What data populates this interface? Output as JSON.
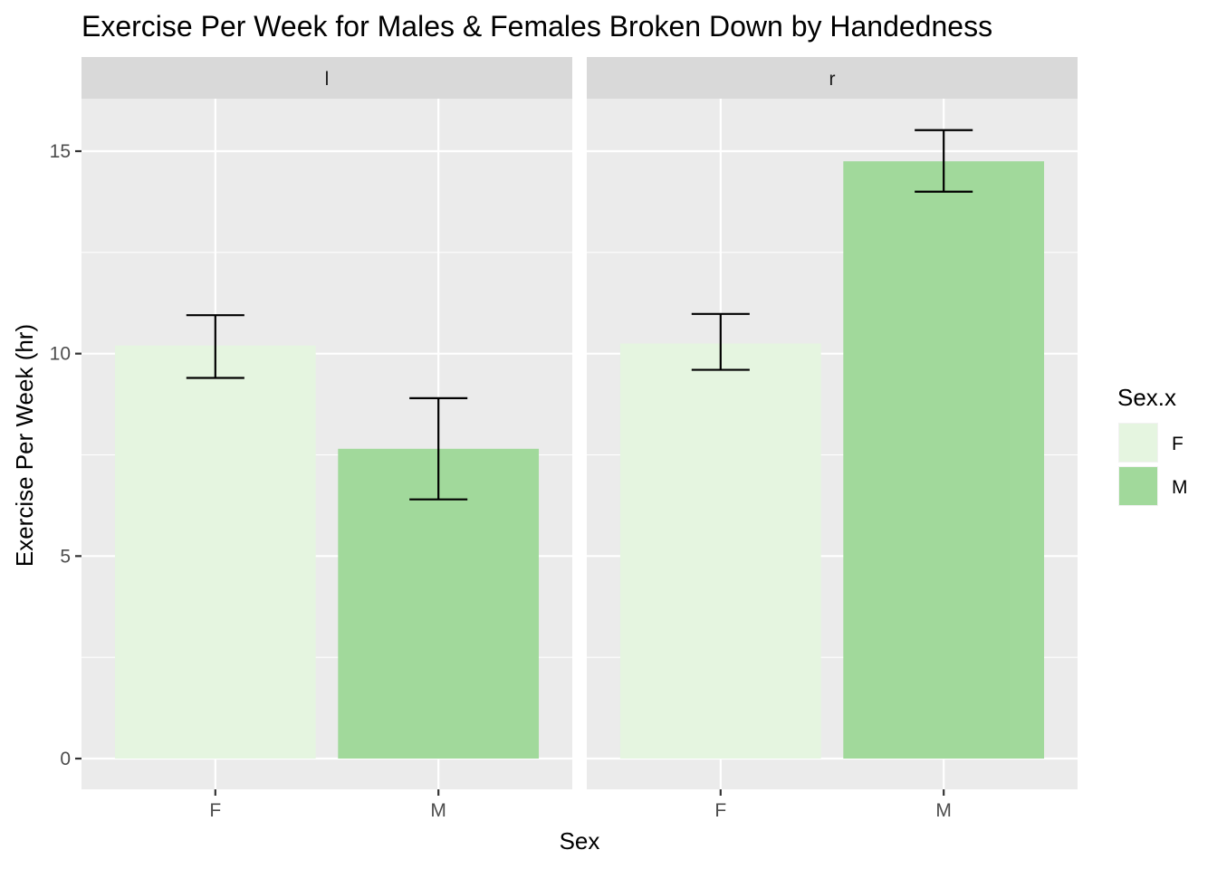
{
  "chart_data": {
    "type": "bar",
    "title": "Exercise Per Week for Males & Females Broken Down by Handedness",
    "xlabel": "Sex",
    "ylabel": "Exercise Per Week (hr)",
    "ylim": [
      -0.75,
      17.1
    ],
    "yticks": [
      0,
      5,
      10,
      15
    ],
    "grid": true,
    "legend": {
      "title": "Sex.x",
      "position": "right",
      "entries": [
        {
          "label": "F",
          "color": "#e5f5e0"
        },
        {
          "label": "M",
          "color": "#a1d99b"
        }
      ]
    },
    "categories": [
      "F",
      "M"
    ],
    "facets": [
      {
        "label": "l",
        "bars": [
          {
            "category": "F",
            "value": 10.2,
            "err_low": 9.4,
            "err_high": 10.95
          },
          {
            "category": "M",
            "value": 7.65,
            "err_low": 6.4,
            "err_high": 8.9
          }
        ]
      },
      {
        "label": "r",
        "bars": [
          {
            "category": "F",
            "value": 10.25,
            "err_low": 9.6,
            "err_high": 10.98
          },
          {
            "category": "M",
            "value": 14.75,
            "err_low": 14.0,
            "err_high": 15.52
          }
        ]
      }
    ]
  },
  "colors": {
    "panel_bg": "#ebebeb",
    "strip_bg": "#d9d9d9",
    "grid": "#ffffff",
    "errorbar": "#000000"
  }
}
